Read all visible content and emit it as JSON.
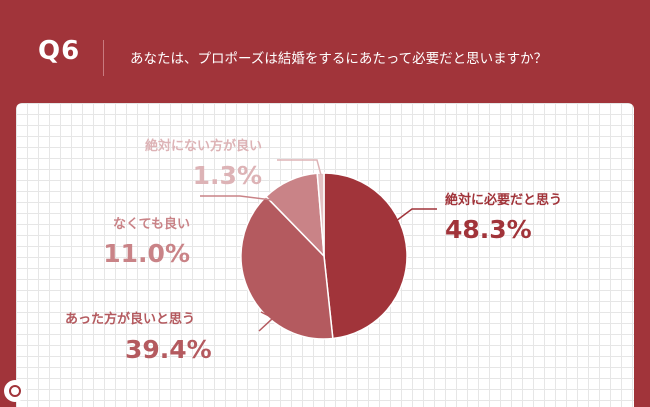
{
  "header": {
    "question_number": "Q6",
    "question_text": "あなたは、プロポーズは結婚をするにあたって必要だと思いますか？"
  },
  "chart_data": {
    "type": "pie",
    "slices": [
      {
        "label": "絶対に必要だと思う",
        "value": 48.3,
        "value_label": "48.3%",
        "color": "#A1343A"
      },
      {
        "label": "あった方が良いと思う",
        "value": 39.4,
        "value_label": "39.4%",
        "color": "#B45A5F"
      },
      {
        "label": "なくても良い",
        "value": 11.0,
        "value_label": "11.0%",
        "color": "#C98387"
      },
      {
        "label": "絶対にない方が良い",
        "value": 1.3,
        "value_label": "1.3%",
        "color": "#E4C0C2"
      }
    ],
    "label_colors": [
      "#A1343A",
      "#B45A5F",
      "#C98387",
      "#DDB3B6"
    ]
  },
  "logo": {
    "icon": "brand-logo-icon"
  }
}
